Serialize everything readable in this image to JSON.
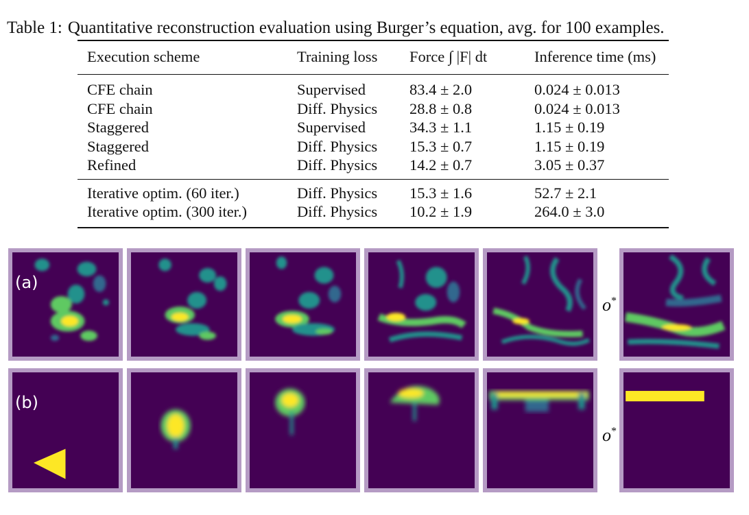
{
  "caption": {
    "label": "Table 1:",
    "text": "Quantitative reconstruction evaluation using Burger’s equation, avg. for 100 examples."
  },
  "table": {
    "headers": [
      "Execution scheme",
      "Training loss",
      "Force ∫ |F| dt",
      "Inference time (ms)"
    ],
    "group1": [
      [
        "CFE chain",
        "Supervised",
        "83.4 ± 2.0",
        "0.024 ± 0.013"
      ],
      [
        "CFE chain",
        "Diff. Physics",
        "28.8 ± 0.8",
        "0.024 ± 0.013"
      ],
      [
        "Staggered",
        "Supervised",
        "34.3 ± 1.1",
        "1.15 ± 0.19"
      ],
      [
        "Staggered",
        "Diff. Physics",
        "15.3 ± 0.7",
        "1.15 ± 0.19"
      ],
      [
        "Refined",
        "Diff. Physics",
        "14.2 ± 0.7",
        "3.05 ± 0.37"
      ]
    ],
    "group2": [
      [
        "Iterative optim. (60 iter.)",
        "Diff. Physics",
        "15.3 ± 1.6",
        "52.7 ± 2.1"
      ],
      [
        "Iterative optim. (300 iter.)",
        "Diff. Physics",
        "10.2 ± 1.9",
        "264.0 ± 3.0"
      ]
    ]
  },
  "figure": {
    "row_a_label": "(a)",
    "row_b_label": "(b)",
    "target_label": "o",
    "target_label_sup": "*",
    "colors": {
      "background": "#440154",
      "border": "#b59bc4",
      "low": "#31688e",
      "mid": "#21918c",
      "high": "#5ec962",
      "peak": "#fde725"
    }
  }
}
